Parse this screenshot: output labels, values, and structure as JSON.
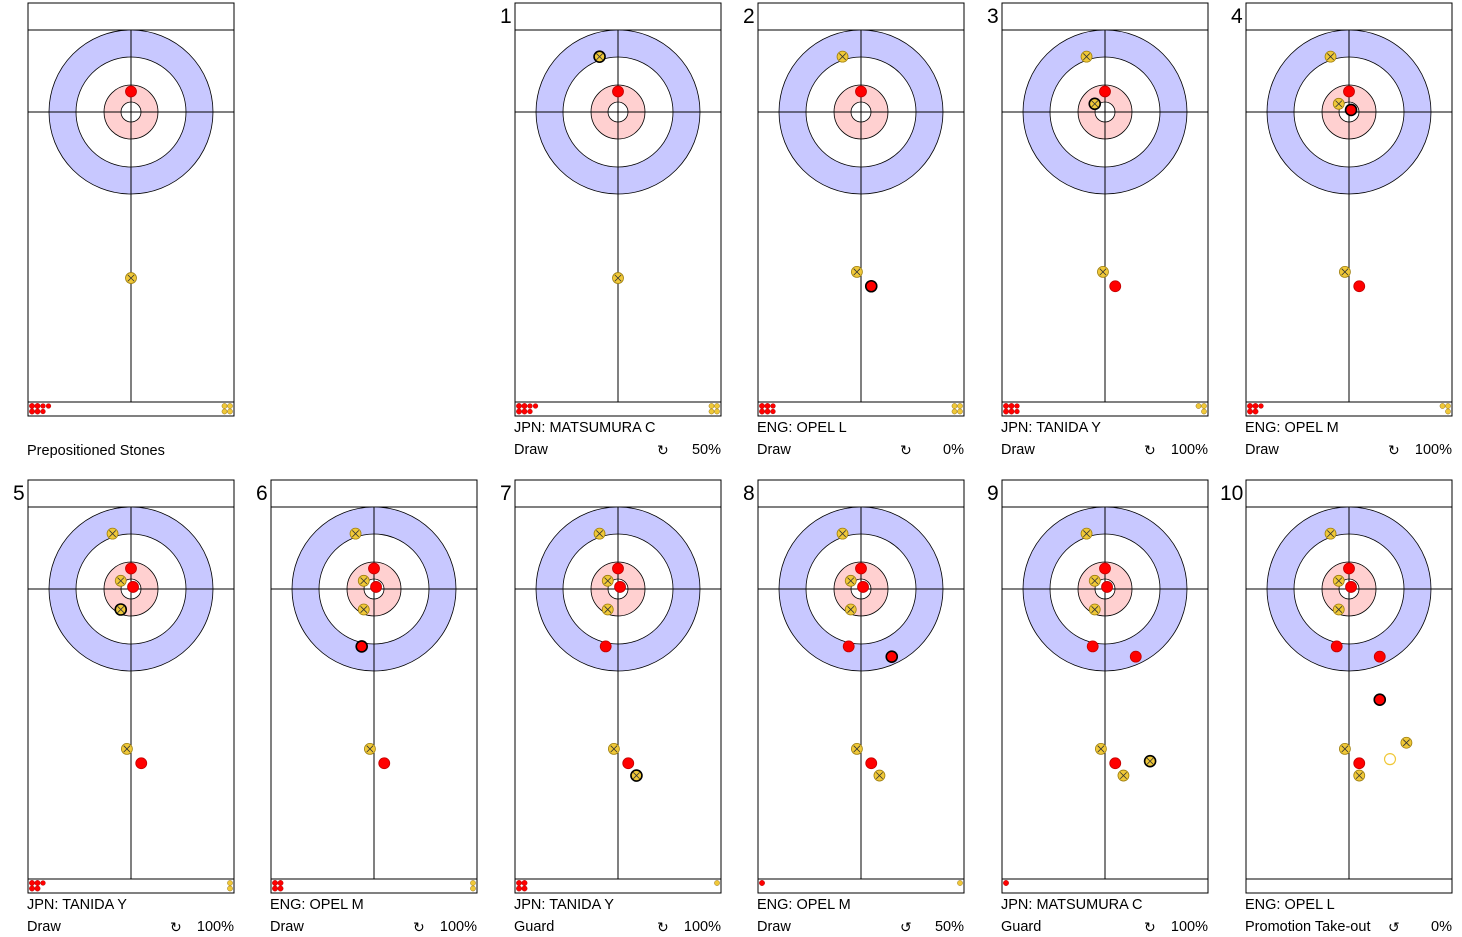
{
  "colors": {
    "house_outer": "#c8c8ff",
    "house_inner": "#ffd0d0",
    "red_stone": "#ff0000",
    "yellow_stone": "#f0c838",
    "line": "#000000"
  },
  "preposition": {
    "title": "Prepositioned Stones",
    "stones": [
      {
        "team": "red",
        "x": 0,
        "y": -1.0
      },
      {
        "team": "yellow",
        "x": 0,
        "y": 8.1
      },
      {
        "team": "yellow",
        "x": 0,
        "y": 16.8,
        "last": true
      }
    ],
    "remaining": {
      "red": 7,
      "yellow": 4
    }
  },
  "ends": [
    {
      "number": "1",
      "player": "JPN: MATSUMURA C",
      "shot": "Draw",
      "rotation": "↻",
      "percent": "50%",
      "stones": [
        {
          "team": "red",
          "x": 0,
          "y": -1.0
        },
        {
          "team": "yellow",
          "x": 0,
          "y": 8.1
        },
        {
          "team": "yellow",
          "x": -0.9,
          "y": -2.7,
          "last": true
        }
      ],
      "remaining": {
        "red": 7,
        "yellow": 4
      }
    },
    {
      "number": "2",
      "player": "ENG: OPEL L",
      "shot": "Draw",
      "rotation": "↻",
      "percent": "0%",
      "stones": [
        {
          "team": "red",
          "x": 0,
          "y": -1.0
        },
        {
          "team": "yellow",
          "x": -0.9,
          "y": -2.7
        },
        {
          "team": "yellow",
          "x": -0.2,
          "y": 7.8
        },
        {
          "team": "red",
          "x": 0.5,
          "y": 8.5,
          "last": true
        }
      ],
      "remaining": {
        "red": 6,
        "yellow": 4
      }
    },
    {
      "number": "3",
      "player": "JPN: TANIDA Y",
      "shot": "Draw",
      "rotation": "↻",
      "percent": "100%",
      "stones": [
        {
          "team": "red",
          "x": 0,
          "y": -1.0
        },
        {
          "team": "yellow",
          "x": -0.9,
          "y": -2.7
        },
        {
          "team": "yellow",
          "x": -0.1,
          "y": 7.8
        },
        {
          "team": "red",
          "x": 0.5,
          "y": 8.5
        },
        {
          "team": "yellow",
          "x": -0.5,
          "y": -0.4,
          "last": true
        }
      ],
      "remaining": {
        "red": 6,
        "yellow": 3
      }
    },
    {
      "number": "4",
      "player": "ENG: OPEL M",
      "shot": "Draw",
      "rotation": "↻",
      "percent": "100%",
      "stones": [
        {
          "team": "red",
          "x": 0,
          "y": -1.0
        },
        {
          "team": "yellow",
          "x": -0.9,
          "y": -2.7
        },
        {
          "team": "yellow",
          "x": -0.5,
          "y": -0.4
        },
        {
          "team": "yellow",
          "x": -0.2,
          "y": 7.8
        },
        {
          "team": "red",
          "x": 0.5,
          "y": 8.5
        },
        {
          "team": "red",
          "x": 0.1,
          "y": -0.1,
          "last": true
        }
      ],
      "remaining": {
        "red": 5,
        "yellow": 3
      }
    },
    {
      "number": "5",
      "player": "JPN: TANIDA Y",
      "shot": "Draw",
      "rotation": "↻",
      "percent": "100%",
      "stones": [
        {
          "team": "red",
          "x": 0,
          "y": -1.0
        },
        {
          "team": "yellow",
          "x": -0.9,
          "y": -2.7
        },
        {
          "team": "yellow",
          "x": -0.5,
          "y": -0.4
        },
        {
          "team": "red",
          "x": 0.1,
          "y": -0.1
        },
        {
          "team": "yellow",
          "x": -0.2,
          "y": 7.8
        },
        {
          "team": "red",
          "x": 0.5,
          "y": 8.5
        },
        {
          "team": "yellow",
          "x": -0.5,
          "y": 1.0,
          "last": true
        }
      ],
      "remaining": {
        "red": 5,
        "yellow": 2
      }
    },
    {
      "number": "6",
      "player": "ENG: OPEL M",
      "shot": "Draw",
      "rotation": "↻",
      "percent": "100%",
      "stones": [
        {
          "team": "red",
          "x": 0,
          "y": -1.0
        },
        {
          "team": "yellow",
          "x": -0.9,
          "y": -2.7
        },
        {
          "team": "yellow",
          "x": -0.5,
          "y": -0.4
        },
        {
          "team": "red",
          "x": 0.1,
          "y": -0.1
        },
        {
          "team": "yellow",
          "x": -0.5,
          "y": 1.0
        },
        {
          "team": "yellow",
          "x": -0.2,
          "y": 7.8
        },
        {
          "team": "red",
          "x": 0.5,
          "y": 8.5
        },
        {
          "team": "red",
          "x": -0.6,
          "y": 2.8,
          "last": true
        }
      ],
      "remaining": {
        "red": 4,
        "yellow": 2
      }
    },
    {
      "number": "7",
      "player": "JPN: TANIDA Y",
      "shot": "Guard",
      "rotation": "↻",
      "percent": "100%",
      "stones": [
        {
          "team": "red",
          "x": 0,
          "y": -1.0
        },
        {
          "team": "yellow",
          "x": -0.9,
          "y": -2.7
        },
        {
          "team": "yellow",
          "x": -0.5,
          "y": -0.4
        },
        {
          "team": "red",
          "x": 0.1,
          "y": -0.1
        },
        {
          "team": "yellow",
          "x": -0.5,
          "y": 1.0
        },
        {
          "team": "red",
          "x": -0.6,
          "y": 2.8
        },
        {
          "team": "yellow",
          "x": -0.2,
          "y": 7.8
        },
        {
          "team": "red",
          "x": 0.5,
          "y": 8.5
        },
        {
          "team": "yellow",
          "x": 0.9,
          "y": 9.1,
          "last": true
        }
      ],
      "remaining": {
        "red": 4,
        "yellow": 1
      }
    },
    {
      "number": "8",
      "player": "ENG: OPEL M",
      "shot": "Draw",
      "rotation": "↺",
      "percent": "50%",
      "stones": [
        {
          "team": "red",
          "x": 0,
          "y": -1.0
        },
        {
          "team": "yellow",
          "x": -0.9,
          "y": -2.7
        },
        {
          "team": "yellow",
          "x": -0.5,
          "y": -0.4
        },
        {
          "team": "red",
          "x": 0.1,
          "y": -0.1
        },
        {
          "team": "yellow",
          "x": -0.5,
          "y": 1.0
        },
        {
          "team": "red",
          "x": -0.6,
          "y": 2.8
        },
        {
          "team": "yellow",
          "x": -0.2,
          "y": 7.8
        },
        {
          "team": "red",
          "x": 0.5,
          "y": 8.5
        },
        {
          "team": "yellow",
          "x": 0.9,
          "y": 9.1
        },
        {
          "team": "red",
          "x": 1.5,
          "y": 3.3,
          "last": true
        }
      ],
      "remaining": {
        "red": 1,
        "yellow": 1
      }
    },
    {
      "number": "9",
      "player": "JPN: MATSUMURA C",
      "shot": "Guard",
      "rotation": "↻",
      "percent": "100%",
      "stones": [
        {
          "team": "red",
          "x": 0,
          "y": -1.0
        },
        {
          "team": "yellow",
          "x": -0.9,
          "y": -2.7
        },
        {
          "team": "yellow",
          "x": -0.5,
          "y": -0.4
        },
        {
          "team": "red",
          "x": 0.1,
          "y": -0.1
        },
        {
          "team": "yellow",
          "x": -0.5,
          "y": 1.0
        },
        {
          "team": "red",
          "x": -0.6,
          "y": 2.8
        },
        {
          "team": "red",
          "x": 1.5,
          "y": 3.3
        },
        {
          "team": "yellow",
          "x": -0.2,
          "y": 7.8
        },
        {
          "team": "red",
          "x": 0.5,
          "y": 8.5
        },
        {
          "team": "yellow",
          "x": 0.9,
          "y": 9.1
        },
        {
          "team": "yellow",
          "x": 2.2,
          "y": 8.4,
          "last": true
        }
      ],
      "remaining": {
        "red": 1,
        "yellow": 0
      }
    },
    {
      "number": "10",
      "player": "ENG: OPEL L",
      "shot": "Promotion Take-out",
      "rotation": "↺",
      "percent": "0%",
      "stones": [
        {
          "team": "red",
          "x": 0,
          "y": -1.0
        },
        {
          "team": "yellow",
          "x": -0.9,
          "y": -2.7
        },
        {
          "team": "yellow",
          "x": -0.5,
          "y": -0.4
        },
        {
          "team": "red",
          "x": 0.1,
          "y": -0.1
        },
        {
          "team": "yellow",
          "x": -0.5,
          "y": 1.0
        },
        {
          "team": "red",
          "x": -0.6,
          "y": 2.8
        },
        {
          "team": "red",
          "x": 1.5,
          "y": 3.3
        },
        {
          "team": "yellow",
          "x": -0.2,
          "y": 7.8
        },
        {
          "team": "red",
          "x": 0.5,
          "y": 8.5
        },
        {
          "team": "yellow",
          "x": 0.5,
          "y": 9.1
        },
        {
          "team": "yellow",
          "x": 2.8,
          "y": 7.5
        },
        {
          "team": "yellow",
          "x": 2.0,
          "y": 8.3,
          "ghost": true
        },
        {
          "team": "red",
          "x": 1.5,
          "y": 5.4,
          "last": true
        }
      ],
      "remaining": {
        "red": 0,
        "yellow": 0
      }
    }
  ]
}
